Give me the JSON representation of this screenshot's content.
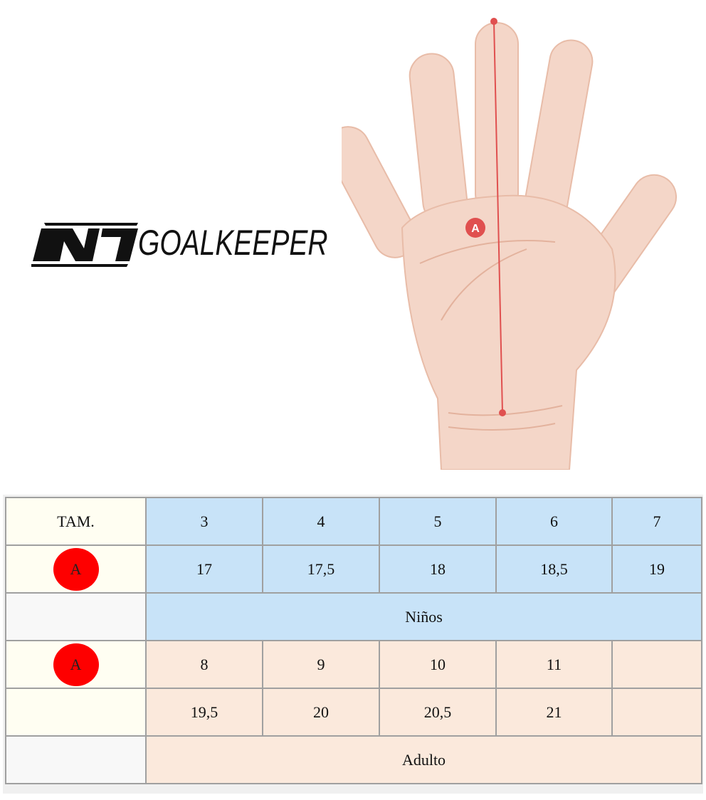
{
  "logo": {
    "mark": "N1",
    "text": "GOALKEEPER"
  },
  "hand_diagram": {
    "marker_label": "A"
  },
  "table": {
    "header_label": "TAM.",
    "measure_label": "A",
    "kids": {
      "sizes": [
        "3",
        "4",
        "5",
        "6",
        "7"
      ],
      "lengths": [
        "17",
        "17,5",
        "18",
        "18,5",
        "19"
      ],
      "group_label": "Niños"
    },
    "adults": {
      "sizes": [
        "8",
        "9",
        "10",
        "11",
        ""
      ],
      "lengths": [
        "19,5",
        "20",
        "20,5",
        "21",
        ""
      ],
      "group_label": "Adulto"
    }
  },
  "colors": {
    "kids_bg": "#c8e3f8",
    "adults_bg": "#fbe9dc",
    "label_bg": "#fffef2",
    "marker": "#fe0000"
  }
}
